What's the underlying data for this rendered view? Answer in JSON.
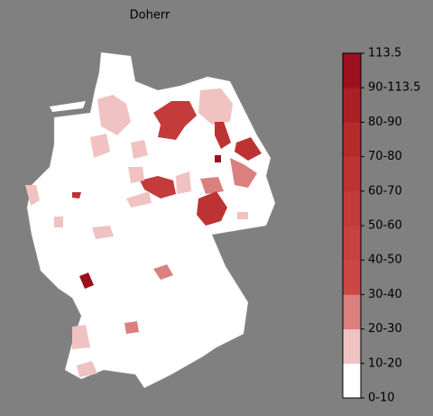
{
  "title": "Doherr",
  "colorbar": {
    "labels": [
      "0-10",
      "10-20",
      "20-30",
      "30-40",
      "40-50",
      "50-60",
      "60-70",
      "70-80",
      "80-90",
      "90-113.5",
      "113.5"
    ],
    "colors": [
      "#ffffff",
      "#f0c2c2",
      "#db7f7f",
      "#cc4646",
      "#c84141",
      "#c33b3b",
      "#bd3333",
      "#b62a2a",
      "#ac1f26",
      "#9c0f1e"
    ]
  }
}
